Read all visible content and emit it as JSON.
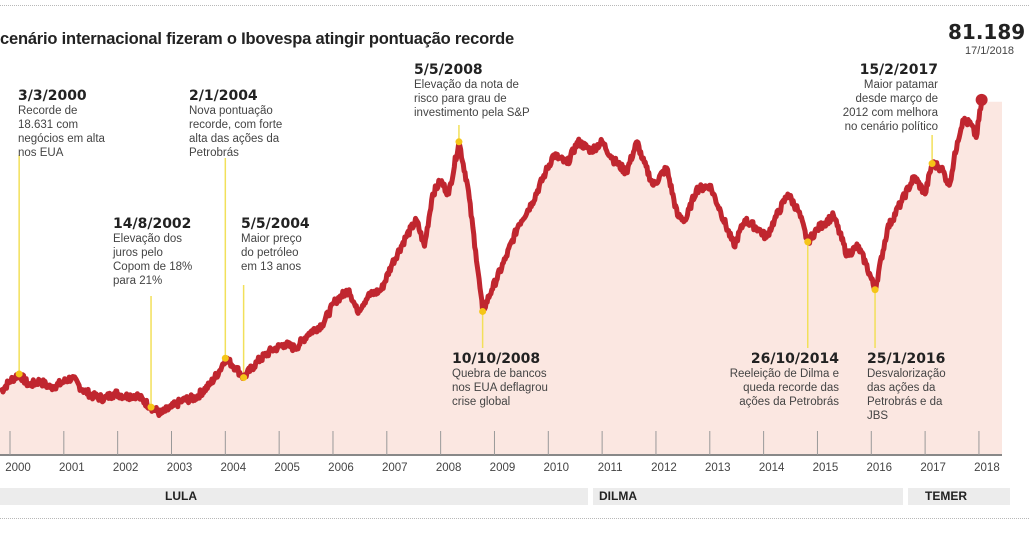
{
  "title": "cenário internacional fizeram o Ibovespa atingir pontuação recorde",
  "record": {
    "value": "81.189",
    "date": "17/1/2018"
  },
  "colors": {
    "line": "#c0262f",
    "fill": "#fbe7e1",
    "marker": "#f5c518",
    "leader": "#f2e05a",
    "axis": "#888888",
    "band": "#ececec"
  },
  "annotations": [
    {
      "id": "a2000",
      "date": "3/3/2000",
      "text": [
        "Recorde de",
        "18.631 com",
        "negócios em alta",
        "nos EUA"
      ]
    },
    {
      "id": "a2002",
      "date": "14/8/2002",
      "text": [
        "Elevação dos",
        "juros pelo",
        "Copom de 18%",
        "para 21%"
      ]
    },
    {
      "id": "a2004a",
      "date": "2/1/2004",
      "text": [
        "Nova pontuação",
        "recorde, com forte",
        "alta das ações da",
        "Petrobrás"
      ]
    },
    {
      "id": "a2004b",
      "date": "5/5/2004",
      "text": [
        "Maior preço",
        "do petróleo",
        "em 13 anos"
      ]
    },
    {
      "id": "a2008a",
      "date": "5/5/2008",
      "text": [
        "Elevação da nota de",
        "risco para grau de",
        "investimento pela S&P"
      ]
    },
    {
      "id": "a2008b",
      "date": "10/10/2008",
      "text": [
        "Quebra de bancos",
        "nos EUA deflagrou",
        "crise global"
      ]
    },
    {
      "id": "a2014",
      "date": "26/10/2014",
      "text": [
        "Reeleição de Dilma e",
        "queda recorde das",
        "ações da Petrobrás"
      ]
    },
    {
      "id": "a2016",
      "date": "25/1/2016",
      "text": [
        "Desvalorização",
        "das ações da",
        "Petrobrás e da",
        "JBS"
      ]
    },
    {
      "id": "a2017",
      "date": "15/2/2017",
      "text": [
        "Maior patamar",
        "desde março de",
        "2012 com melhora",
        "no cenário político"
      ]
    }
  ],
  "presidents": [
    {
      "name": "LULA"
    },
    {
      "name": "DILMA"
    },
    {
      "name": "TEMER"
    }
  ],
  "chart_data": {
    "type": "area",
    "title": "cenário internacional fizeram o Ibovespa atingir pontuação recorde",
    "xlabel": "",
    "ylabel": "",
    "x_ticks": [
      "2000",
      "2001",
      "2002",
      "2003",
      "2004",
      "2005",
      "2006",
      "2007",
      "2008",
      "2009",
      "2010",
      "2011",
      "2012",
      "2013",
      "2014",
      "2015",
      "2016",
      "2017",
      "2018"
    ],
    "ylim": [
      0,
      85000
    ],
    "y_ticks_unlabeled": [
      20000,
      40000,
      60000,
      80000
    ],
    "series": [
      {
        "name": "Ibovespa",
        "x": [
          1999.82,
          2000.0,
          2000.17,
          2000.35,
          2000.55,
          2000.75,
          2000.95,
          2001.15,
          2001.35,
          2001.55,
          2001.75,
          2001.95,
          2002.15,
          2002.35,
          2002.62,
          2002.8,
          2003.0,
          2003.2,
          2003.45,
          2003.7,
          2003.9,
          2004.0,
          2004.2,
          2004.34,
          2004.6,
          2004.85,
          2005.1,
          2005.3,
          2005.55,
          2005.8,
          2006.05,
          2006.3,
          2006.45,
          2006.65,
          2006.9,
          2007.1,
          2007.35,
          2007.55,
          2007.7,
          2007.85,
          2008.0,
          2008.15,
          2008.34,
          2008.5,
          2008.65,
          2008.78,
          2008.95,
          2009.2,
          2009.45,
          2009.7,
          2009.95,
          2010.1,
          2010.35,
          2010.55,
          2010.8,
          2011.0,
          2011.2,
          2011.45,
          2011.65,
          2011.75,
          2011.95,
          2012.2,
          2012.4,
          2012.55,
          2012.75,
          2013.0,
          2013.2,
          2013.45,
          2013.65,
          2013.9,
          2014.05,
          2014.2,
          2014.45,
          2014.65,
          2014.82,
          2015.0,
          2015.3,
          2015.55,
          2015.75,
          2015.9,
          2016.07,
          2016.3,
          2016.55,
          2016.8,
          2017.0,
          2017.13,
          2017.3,
          2017.45,
          2017.6,
          2017.7,
          2017.85,
          2017.95,
          2018.05
        ],
        "y": [
          14500,
          17000,
          18631,
          16000,
          17000,
          15500,
          16500,
          17800,
          15000,
          13500,
          13000,
          14200,
          13500,
          13800,
          11000,
          9500,
          11000,
          12500,
          13200,
          16000,
          19500,
          22236,
          20000,
          17800,
          21500,
          24000,
          25500,
          24500,
          28000,
          30000,
          35500,
          38000,
          33000,
          36500,
          38000,
          44000,
          50000,
          54000,
          48000,
          60000,
          63000,
          60000,
          72000,
          62000,
          47000,
          33000,
          38000,
          45000,
          53000,
          58000,
          65000,
          69000,
          67000,
          72000,
          70000,
          72000,
          68000,
          65000,
          72000,
          68000,
          62000,
          66000,
          55000,
          54000,
          61000,
          62000,
          56000,
          48000,
          54000,
          52000,
          50000,
          54000,
          60000,
          56000,
          49000,
          52000,
          55000,
          46000,
          48000,
          44000,
          38000,
          52000,
          58000,
          64000,
          60000,
          67000,
          66000,
          62000,
          72000,
          77000,
          76000,
          73000,
          81189
        ]
      }
    ]
  }
}
